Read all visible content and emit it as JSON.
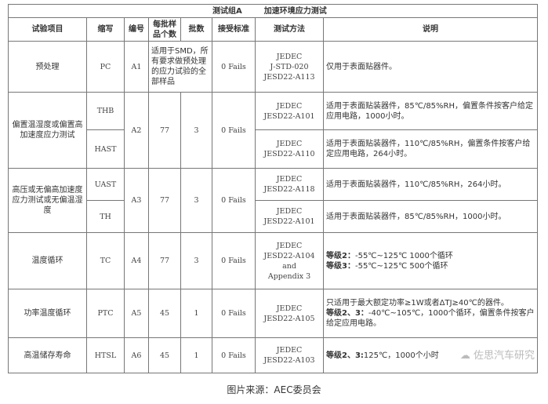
{
  "title": {
    "group": "测试组A",
    "name": "加速环境应力测试"
  },
  "headers": [
    "试验项目",
    "缩写",
    "编号",
    "每批样品个数",
    "批数",
    "接受标准",
    "测试方法",
    "说明"
  ],
  "rows": {
    "pc": {
      "item": "预处理",
      "abbr": "PC",
      "no": "A1",
      "samples": "适用于SMD，所有要求做预处理的应力试验的全部样品",
      "accept": "0 Fails",
      "method": [
        "JEDEC",
        "J-STD-020",
        "JESD22-A113"
      ],
      "desc": "仅用于表面贴器件。"
    },
    "a2": {
      "item": "偏置温湿度或偏置高加速度应力测试",
      "no": "A2",
      "samples": "77",
      "lots": "3",
      "accept": "0 Fails",
      "thb": {
        "abbr": "THB",
        "method": [
          "JEDEC",
          "JESD22-A101"
        ],
        "desc": "适用于表面贴装器件，85℃/85%RH，偏置条件按客户给定应用电路，1000小时。"
      },
      "hast": {
        "abbr": "HAST",
        "method": [
          "JEDEC",
          "JESD22-A110"
        ],
        "desc": "适用于表面贴装器件，110℃/85%RH，偏置条件按客户给定应用电路，264小时。"
      }
    },
    "a3": {
      "item": "高压或无偏高加速度应力测试或无偏温湿度",
      "no": "A3",
      "samples": "77",
      "lots": "3",
      "accept": "0 Fails",
      "uast": {
        "abbr": "UAST",
        "method": [
          "JEDEC",
          "JESD22-A118"
        ],
        "desc": "适用于表面贴装器件，110℃/85%RH，264小时。"
      },
      "th": {
        "abbr": "TH",
        "method": [
          "JEDEC",
          "JESD22-A101"
        ],
        "desc": "适用于表面贴装器件，85℃/85%RH，1000小时。"
      }
    },
    "tc": {
      "item": "温度循环",
      "abbr": "TC",
      "no": "A4",
      "samples": "77",
      "lots": "3",
      "accept": "0 Fails",
      "method": [
        "JEDEC",
        "JESD22-A104 and",
        "Appendix 3"
      ],
      "desc1_label": "等级2：",
      "desc1": "-55℃~125℃ 1000个循环",
      "desc2_label": "等级3：",
      "desc2": "-55℃~125℃ 500个循环"
    },
    "ptc": {
      "item": "功率温度循环",
      "abbr": "PTC",
      "no": "A5",
      "samples": "45",
      "lots": "1",
      "accept": "0 Fails",
      "method": [
        "JEDEC",
        "JESD22-A105"
      ],
      "desc1": "只适用于最大额定功率≥1W或者ΔTJ≥40℃的器件。",
      "desc2_label": "等级2、3：",
      "desc2": "-40℃~105℃，1000个循环，偏置条件按客户给定应用电路。"
    },
    "htsl": {
      "item": "高温储存寿命",
      "abbr": "HTSL",
      "no": "A6",
      "samples": "45",
      "lots": "1",
      "accept": "0 Fails",
      "method": [
        "JEDEC",
        "JESD22-A103"
      ],
      "desc_label": "等级2、3:",
      "desc": "125℃，1000个小时"
    }
  },
  "watermark": "佐思汽车研究",
  "caption": "图片来源：AEC委员会"
}
